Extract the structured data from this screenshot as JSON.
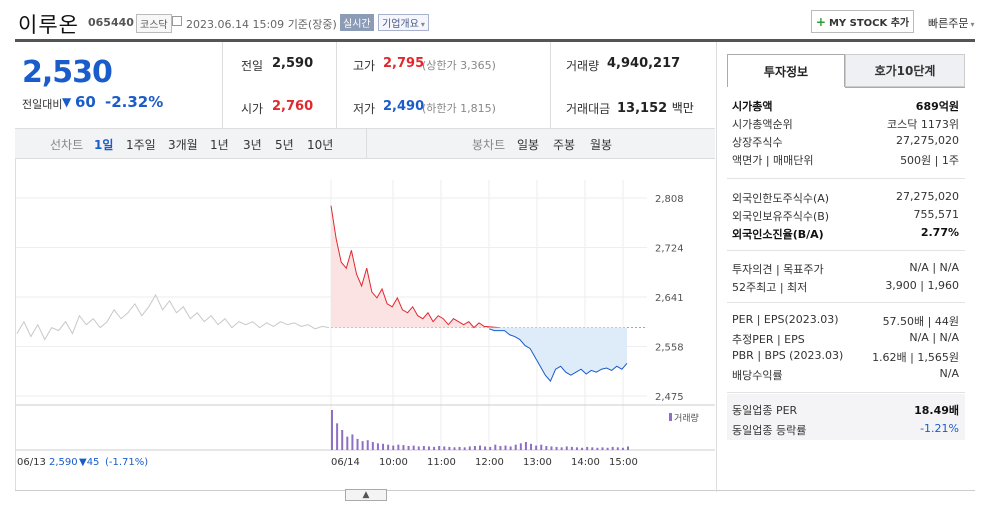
{
  "header": {
    "name": "이루온",
    "code": "065440",
    "market": "코스닥",
    "datetime": "2023.06.14 15:09",
    "basis": "기준(장중)",
    "realtime": "실시간",
    "overview": "기업개요",
    "mystock": "MY STOCK 추가",
    "quick": "빠른주문"
  },
  "price": {
    "current": "2,530",
    "change_label": "전일대비",
    "change": "60",
    "change_pct": "-2.32%"
  },
  "summary": {
    "prev_label": "전일",
    "prev": "2,590",
    "high_label": "고가",
    "high": "2,795",
    "upper_limit": "(상한가 3,365)",
    "volume_label": "거래량",
    "volume": "4,940,217",
    "open_label": "시가",
    "open": "2,760",
    "low_label": "저가",
    "low": "2,490",
    "lower_limit": "(하한가 1,815)",
    "amount_label": "거래대금",
    "amount": "13,152",
    "amount_unit": "백만"
  },
  "period_bar": {
    "line_label": "선차트",
    "periods": [
      "1일",
      "1주일",
      "3개월",
      "1년",
      "3년",
      "5년",
      "10년"
    ],
    "active": "1일",
    "candle_label": "봉차트",
    "candles": [
      "일봉",
      "주봉",
      "월봉"
    ]
  },
  "chart_data": {
    "type": "line",
    "y_ticks": [
      "2,808",
      "2,724",
      "2,641",
      "2,558",
      "2,475"
    ],
    "ylim": [
      2475,
      2808
    ],
    "base_price": 2590,
    "x_ticks": [
      "06/14",
      "10:00",
      "11:00",
      "12:00",
      "13:00",
      "14:00",
      "15:00"
    ],
    "prev_day_label": "06/13",
    "prev_day_close": "2,590",
    "prev_day_change": "▼45",
    "prev_day_pct": "(-1.71%)",
    "volume_legend": "거래량",
    "prev_day": [
      2580,
      2600,
      2575,
      2595,
      2570,
      2590,
      2585,
      2600,
      2580,
      2610,
      2595,
      2605,
      2590,
      2600,
      2620,
      2605,
      2615,
      2630,
      2610,
      2625,
      2645,
      2620,
      2635,
      2615,
      2625,
      2605,
      2615,
      2600,
      2610,
      2595,
      2605,
      2590,
      2600,
      2595,
      2600,
      2590,
      2598,
      2592,
      2600,
      2595,
      2598,
      2592,
      2595,
      2588,
      2592,
      2590
    ],
    "today": [
      2795,
      2740,
      2700,
      2690,
      2720,
      2680,
      2660,
      2690,
      2650,
      2640,
      2655,
      2630,
      2625,
      2640,
      2620,
      2615,
      2625,
      2610,
      2605,
      2615,
      2600,
      2610,
      2605,
      2595,
      2605,
      2600,
      2595,
      2600,
      2590,
      2598,
      2592,
      2588,
      2585,
      2590,
      2585,
      2578,
      2575,
      2570,
      2560,
      2555,
      2540,
      2525,
      2510,
      2500,
      2520,
      2525,
      2515,
      2510,
      2515,
      2520,
      2512,
      2518,
      2515,
      2520,
      2522,
      2518,
      2525,
      2520,
      2530
    ],
    "today_volume": [
      90,
      60,
      45,
      30,
      35,
      25,
      20,
      22,
      18,
      15,
      14,
      12,
      10,
      12,
      11,
      9,
      10,
      8,
      9,
      8,
      7,
      9,
      8,
      7,
      6,
      7,
      6,
      8,
      9,
      10,
      8,
      7,
      12,
      9,
      10,
      8,
      12,
      15,
      18,
      14,
      10,
      12,
      9,
      8,
      7,
      6,
      8,
      7,
      6,
      5,
      7,
      6,
      5,
      6,
      5,
      7,
      6,
      5,
      8
    ]
  },
  "info_tabs": [
    "투자정보",
    "호가10단계"
  ],
  "invest_info": {
    "group1": [
      {
        "label": "시가총액",
        "value": "689억원",
        "bold": true
      },
      {
        "label": "시가총액순위",
        "value": "코스닥 1173위"
      },
      {
        "label": "상장주식수",
        "value": "27,275,020"
      },
      {
        "label": "액면가 | 매매단위",
        "value": "500원 | 1주"
      }
    ],
    "group2": [
      {
        "label": "외국인한도주식수(A)",
        "value": "27,275,020"
      },
      {
        "label": "외국인보유주식수(B)",
        "value": "755,571"
      },
      {
        "label": "외국인소진율(B/A)",
        "value": "2.77%",
        "bold": true
      }
    ],
    "group3": [
      {
        "label": "투자의견 | 목표주가",
        "value": "N/A | N/A"
      },
      {
        "label": "52주최고 | 최저",
        "value": "3,900 | 1,960"
      }
    ],
    "group4": [
      {
        "label": "PER | EPS(2023.03)",
        "value": "57.50배 | 44원"
      },
      {
        "label": "추정PER | EPS",
        "value": "N/A | N/A"
      },
      {
        "label": "PBR | BPS (2023.03)",
        "value": "1.62배 | 1,565원"
      },
      {
        "label": "배당수익률",
        "value": "N/A"
      }
    ],
    "industry": [
      {
        "label": "동일업종 PER",
        "value": "18.49배"
      },
      {
        "label": "동일업종 등락률",
        "value": "-1.21%"
      }
    ]
  },
  "colors": {
    "up": "#e0282f",
    "down": "#1a5cc9",
    "prev_line": "#c8c8c8",
    "volume": "#8e6fc6"
  }
}
